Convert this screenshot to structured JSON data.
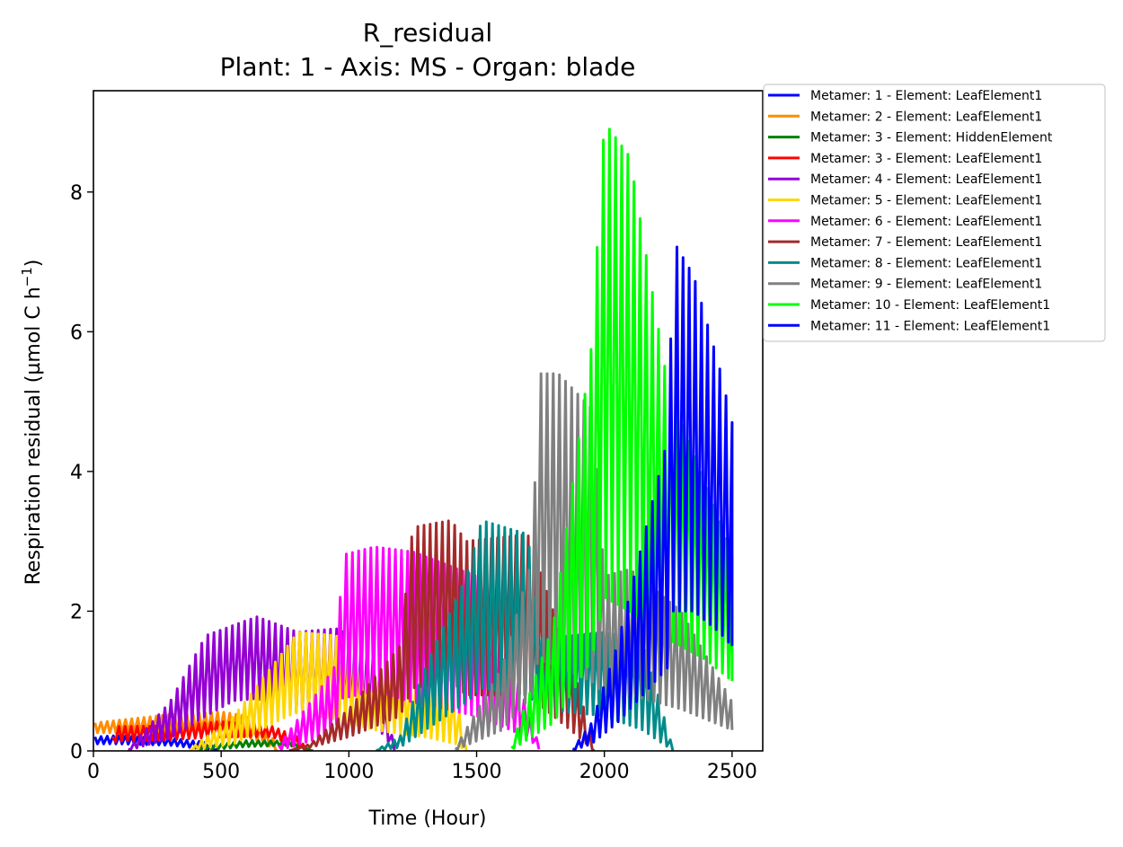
{
  "chart_data": {
    "type": "line",
    "title": "R_residual",
    "subtitle": "Plant: 1 - Axis: MS - Organ: blade",
    "xlabel": "Time (Hour)",
    "ylabel_main": "Respiration residual (µmol C h",
    "ylabel_sup": "−1",
    "ylabel_close": ")",
    "xlim": [
      0,
      2620
    ],
    "ylim": [
      0,
      9.45
    ],
    "xticks": [
      0,
      500,
      1000,
      1500,
      2000,
      2500
    ],
    "xtick_labels": [
      "0",
      "500",
      "1000",
      "1500",
      "2000",
      "2500"
    ],
    "yticks": [
      0,
      2,
      4,
      6,
      8
    ],
    "ytick_labels": [
      "0",
      "2",
      "4",
      "6",
      "8"
    ],
    "grid": false,
    "legend_position": "outside-top-right",
    "series": [
      {
        "name": "Metamer: 1 - Element: LeafElement1",
        "color": "#0000ff",
        "start": 0,
        "end": 480,
        "hi": [
          [
            0,
            0.2
          ],
          [
            100,
            0.22
          ],
          [
            300,
            0.18
          ],
          [
            450,
            0.12
          ],
          [
            480,
            0.02
          ]
        ],
        "lo": [
          [
            0,
            0.1
          ],
          [
            100,
            0.1
          ],
          [
            300,
            0.08
          ],
          [
            450,
            0.02
          ],
          [
            480,
            0
          ]
        ]
      },
      {
        "name": "Metamer: 2 - Element: LeafElement1",
        "color": "#ff8c00",
        "start": 0,
        "end": 720,
        "hi": [
          [
            0,
            0.4
          ],
          [
            100,
            0.44
          ],
          [
            300,
            0.52
          ],
          [
            500,
            0.56
          ],
          [
            600,
            0.5
          ],
          [
            700,
            0.2
          ],
          [
            720,
            0
          ]
        ],
        "lo": [
          [
            0,
            0.26
          ],
          [
            100,
            0.26
          ],
          [
            300,
            0.28
          ],
          [
            500,
            0.26
          ],
          [
            600,
            0.2
          ],
          [
            700,
            0.05
          ],
          [
            720,
            0
          ]
        ]
      },
      {
        "name": "Metamer: 3 - Element: HiddenElement",
        "color": "#008000",
        "start": 400,
        "end": 860,
        "hi": [
          [
            400,
            0.06
          ],
          [
            600,
            0.15
          ],
          [
            760,
            0.14
          ],
          [
            860,
            0
          ]
        ],
        "lo": [
          [
            400,
            0
          ],
          [
            600,
            0.06
          ],
          [
            760,
            0.08
          ],
          [
            860,
            0
          ]
        ]
      },
      {
        "name": "Metamer: 3 - Element: LeafElement1",
        "color": "#ff0000",
        "start": 70,
        "end": 840,
        "hi": [
          [
            70,
            0.14
          ],
          [
            90,
            0.35
          ],
          [
            300,
            0.36
          ],
          [
            500,
            0.42
          ],
          [
            700,
            0.35
          ],
          [
            800,
            0.2
          ],
          [
            840,
            0
          ]
        ],
        "lo": [
          [
            70,
            0.1
          ],
          [
            90,
            0.14
          ],
          [
            300,
            0.16
          ],
          [
            500,
            0.2
          ],
          [
            700,
            0.2
          ],
          [
            800,
            0.05
          ],
          [
            840,
            0
          ]
        ]
      },
      {
        "name": "Metamer: 4 - Element: LeafElement1",
        "color": "#9400d3",
        "start": 130,
        "end": 1180,
        "hi": [
          [
            130,
            0
          ],
          [
            300,
            0.7
          ],
          [
            440,
            1.65
          ],
          [
            550,
            1.8
          ],
          [
            640,
            1.92
          ],
          [
            800,
            1.7
          ],
          [
            950,
            1.75
          ],
          [
            1100,
            1.5
          ],
          [
            1180,
            0
          ]
        ],
        "lo": [
          [
            130,
            0
          ],
          [
            300,
            0.18
          ],
          [
            440,
            0.5
          ],
          [
            550,
            0.72
          ],
          [
            640,
            0.75
          ],
          [
            800,
            0.55
          ],
          [
            950,
            0.5
          ],
          [
            1100,
            0.4
          ],
          [
            1180,
            0
          ]
        ]
      },
      {
        "name": "Metamer: 5 - Element: LeafElement1",
        "color": "#ffd700",
        "start": 370,
        "end": 1460,
        "hi": [
          [
            370,
            0
          ],
          [
            550,
            0.5
          ],
          [
            760,
            1.5
          ],
          [
            800,
            1.7
          ],
          [
            950,
            1.65
          ],
          [
            1100,
            1.1
          ],
          [
            1300,
            1.05
          ],
          [
            1420,
            0.8
          ],
          [
            1460,
            0
          ]
        ],
        "lo": [
          [
            370,
            0
          ],
          [
            550,
            0.1
          ],
          [
            760,
            0.5
          ],
          [
            800,
            0.55
          ],
          [
            950,
            0.45
          ],
          [
            1100,
            0.3
          ],
          [
            1300,
            0.2
          ],
          [
            1420,
            0.1
          ],
          [
            1460,
            0
          ]
        ]
      },
      {
        "name": "Metamer: 6 - Element: LeafElement1",
        "color": "#ff00ff",
        "start": 720,
        "end": 1750,
        "hi": [
          [
            720,
            0.05
          ],
          [
            900,
            0.95
          ],
          [
            960,
            1.3
          ],
          [
            970,
            2.8
          ],
          [
            1100,
            2.92
          ],
          [
            1250,
            2.85
          ],
          [
            1500,
            2.5
          ],
          [
            1700,
            0.6
          ],
          [
            1750,
            0
          ]
        ],
        "lo": [
          [
            720,
            0
          ],
          [
            900,
            0.2
          ],
          [
            960,
            0.4
          ],
          [
            970,
            0.75
          ],
          [
            1100,
            0.85
          ],
          [
            1250,
            0.7
          ],
          [
            1500,
            0.5
          ],
          [
            1700,
            0.2
          ],
          [
            1750,
            0
          ]
        ]
      },
      {
        "name": "Metamer: 7 - Element: LeafElement1",
        "color": "#a52a2a",
        "start": 760,
        "end": 1960,
        "hi": [
          [
            760,
            0
          ],
          [
            850,
            0.1
          ],
          [
            1000,
            0.6
          ],
          [
            1200,
            1.5
          ],
          [
            1250,
            3.2
          ],
          [
            1400,
            3.3
          ],
          [
            1460,
            3.0
          ],
          [
            1700,
            3.1
          ],
          [
            1900,
            0.9
          ],
          [
            1960,
            0
          ]
        ],
        "lo": [
          [
            760,
            0
          ],
          [
            850,
            0.05
          ],
          [
            1000,
            0.2
          ],
          [
            1200,
            0.5
          ],
          [
            1250,
            0.9
          ],
          [
            1400,
            1.0
          ],
          [
            1460,
            0.8
          ],
          [
            1700,
            0.8
          ],
          [
            1900,
            0.2
          ],
          [
            1960,
            0
          ]
        ]
      },
      {
        "name": "Metamer: 8 - Element: LeafElement1",
        "color": "#008b8b",
        "start": 1100,
        "end": 2270,
        "hi": [
          [
            1100,
            0
          ],
          [
            1200,
            0.2
          ],
          [
            1300,
            1.2
          ],
          [
            1460,
            2.5
          ],
          [
            1520,
            3.3
          ],
          [
            1700,
            3.1
          ],
          [
            1750,
            1.6
          ],
          [
            2000,
            1.7
          ],
          [
            2150,
            1.6
          ],
          [
            2270,
            0
          ]
        ],
        "lo": [
          [
            1100,
            0
          ],
          [
            1200,
            0.05
          ],
          [
            1300,
            0.3
          ],
          [
            1460,
            0.7
          ],
          [
            1520,
            0.9
          ],
          [
            1700,
            0.8
          ],
          [
            1750,
            0.6
          ],
          [
            2000,
            0.5
          ],
          [
            2150,
            0.3
          ],
          [
            2270,
            0
          ]
        ]
      },
      {
        "name": "Metamer: 9 - Element: LeafElement1",
        "color": "#808080",
        "start": 1410,
        "end": 2500,
        "hi": [
          [
            1410,
            0
          ],
          [
            1600,
            1.2
          ],
          [
            1720,
            2.8
          ],
          [
            1740,
            5.4
          ],
          [
            1820,
            5.4
          ],
          [
            1950,
            4.9
          ],
          [
            2000,
            2.5
          ],
          [
            2100,
            2.6
          ],
          [
            2300,
            2.0
          ],
          [
            2500,
            0.7
          ]
        ],
        "lo": [
          [
            1410,
            0
          ],
          [
            1600,
            0.3
          ],
          [
            1720,
            0.8
          ],
          [
            1740,
            1.3
          ],
          [
            1820,
            1.2
          ],
          [
            1950,
            1.0
          ],
          [
            2000,
            0.8
          ],
          [
            2100,
            0.8
          ],
          [
            2300,
            0.6
          ],
          [
            2500,
            0.3
          ]
        ]
      },
      {
        "name": "Metamer: 10 - Element: LeafElement1",
        "color": "#00ff00",
        "start": 1630,
        "end": 2500,
        "hi": [
          [
            1630,
            0
          ],
          [
            1800,
            1.8
          ],
          [
            1950,
            5.8
          ],
          [
            2000,
            9.0
          ],
          [
            2100,
            8.5
          ],
          [
            2250,
            5.2
          ],
          [
            2400,
            3.8
          ],
          [
            2500,
            2.8
          ]
        ],
        "lo": [
          [
            1630,
            0
          ],
          [
            1800,
            0.4
          ],
          [
            1950,
            1.3
          ],
          [
            2000,
            2.2
          ],
          [
            2100,
            2.0
          ],
          [
            2250,
            1.6
          ],
          [
            2400,
            1.3
          ],
          [
            2500,
            1.0
          ]
        ]
      },
      {
        "name": "Metamer: 11 - Element: LeafElement1",
        "color": "#0000ff",
        "start": 1870,
        "end": 2500,
        "hi": [
          [
            1870,
            0
          ],
          [
            1950,
            0.4
          ],
          [
            2050,
            1.5
          ],
          [
            2150,
            3.0
          ],
          [
            2250,
            4.5
          ],
          [
            2270,
            7.3
          ],
          [
            2350,
            6.8
          ],
          [
            2450,
            5.5
          ],
          [
            2500,
            4.7
          ]
        ],
        "lo": [
          [
            1870,
            0
          ],
          [
            1950,
            0.1
          ],
          [
            2050,
            0.4
          ],
          [
            2150,
            0.8
          ],
          [
            2250,
            1.2
          ],
          [
            2270,
            2.0
          ],
          [
            2350,
            2.0
          ],
          [
            2450,
            1.7
          ],
          [
            2500,
            1.5
          ]
        ]
      }
    ]
  }
}
